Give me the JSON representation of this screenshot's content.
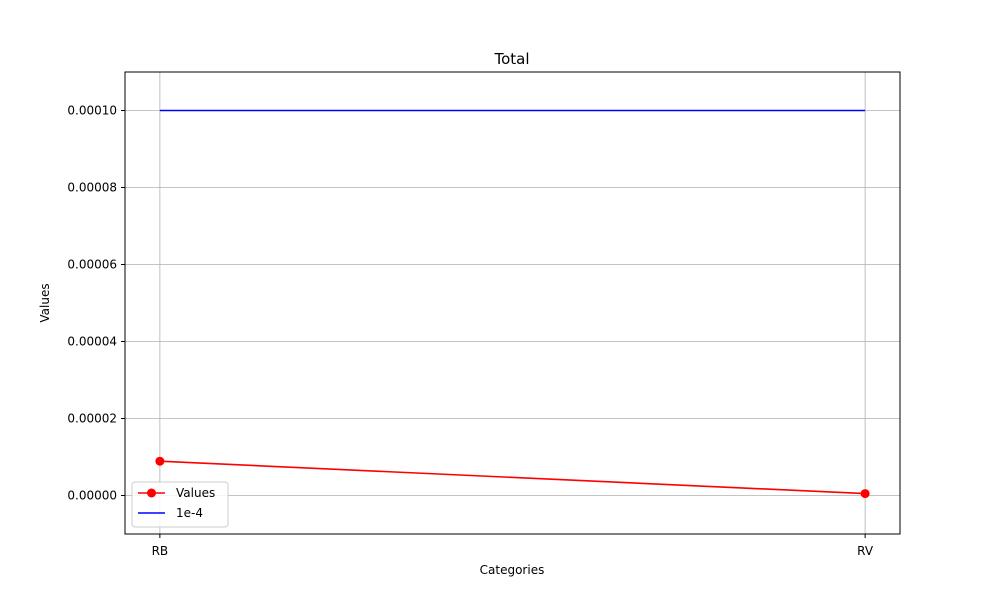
{
  "chart_data": {
    "type": "line",
    "title": "Total",
    "xlabel": "Categories",
    "ylabel": "Values",
    "categories": [
      "RB",
      "RV"
    ],
    "ylim": [
      -1e-05,
      0.00011
    ],
    "yticks": [
      "0.00000",
      "0.00002",
      "0.00004",
      "0.00006",
      "0.00008",
      "0.00010"
    ],
    "ytick_values": [
      0,
      2e-05,
      4e-05,
      6e-05,
      8e-05,
      0.0001
    ],
    "grid": true,
    "legend_position": "lower-left",
    "series": [
      {
        "name": "Values",
        "values": [
          8.9e-06,
          5e-07
        ],
        "color": "#ff0000",
        "marker": "circle"
      },
      {
        "name": "1e-4",
        "values": [
          0.0001,
          0.0001
        ],
        "color": "#0000ff",
        "marker": "none"
      }
    ]
  }
}
